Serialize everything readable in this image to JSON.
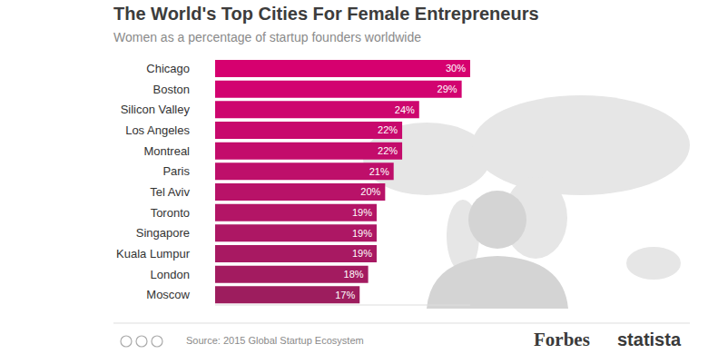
{
  "chart_data": {
    "type": "bar",
    "title": "The World's Top Cities For Female Entrepreneurs",
    "subtitle": "Women as a percentage of startup founders worldwide",
    "orientation": "horizontal",
    "categories": [
      "Chicago",
      "Boston",
      "Silicon Valley",
      "Los Angeles",
      "Montreal",
      "Paris",
      "Tel Aviv",
      "Toronto",
      "Singapore",
      "Kuala Lumpur",
      "London",
      "Moscow"
    ],
    "values": [
      30,
      29,
      24,
      22,
      22,
      21,
      20,
      19,
      19,
      19,
      18,
      17
    ],
    "value_labels": [
      "30%",
      "29%",
      "24%",
      "22%",
      "22%",
      "21%",
      "20%",
      "19%",
      "19%",
      "19%",
      "18%",
      "17%"
    ],
    "colors": [
      "#d6006f",
      "#d20370",
      "#cd066e",
      "#c8096d",
      "#c30c6b",
      "#be0f6a",
      "#b81268",
      "#b31566",
      "#ad1764",
      "#a81962",
      "#a31b60",
      "#9d1d5e"
    ],
    "xlim": [
      0,
      30
    ],
    "data_labels": true,
    "tick_labels": "y",
    "source": "Source: 2015 Global Startup Ecosystem",
    "annotations": [
      "Forbes",
      "statista"
    ]
  }
}
